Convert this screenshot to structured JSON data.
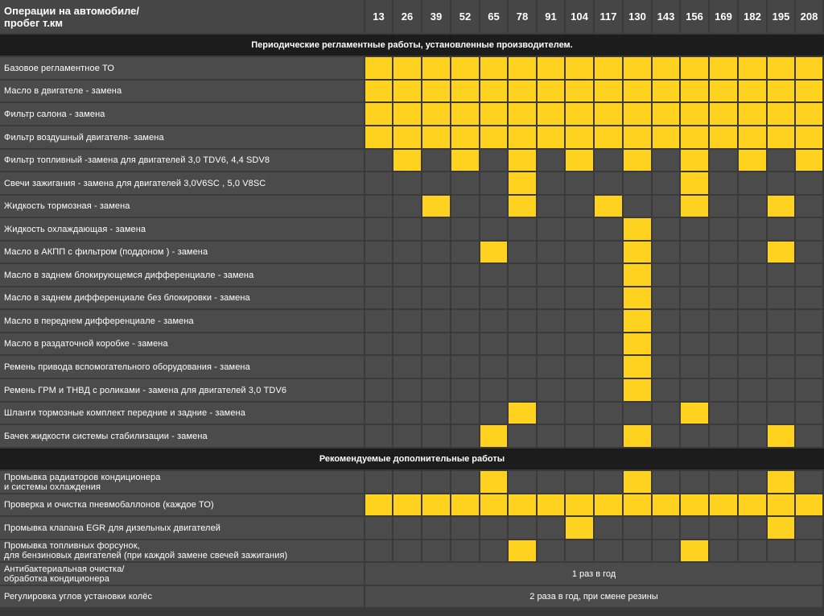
{
  "header": {
    "label": "Операции на автомобиле/\nпробег т.км",
    "km": [
      "13",
      "26",
      "39",
      "52",
      "65",
      "78",
      "91",
      "104",
      "117",
      "130",
      "143",
      "156",
      "169",
      "182",
      "195",
      "208"
    ]
  },
  "colors": {
    "active": "#ffd21f",
    "cell": "#4b4b4b",
    "section": "#1c1c1c"
  },
  "sections": [
    {
      "title": "Периодические регламентные работы, установленные производителем.",
      "rows": [
        {
          "label": "Базовое регламентное ТО",
          "marks": [
            "13",
            "26",
            "39",
            "52",
            "65",
            "78",
            "91",
            "104",
            "117",
            "130",
            "143",
            "156",
            "169",
            "182",
            "195",
            "208"
          ]
        },
        {
          "label": "Масло в двигателе - замена",
          "marks": [
            "13",
            "26",
            "39",
            "52",
            "65",
            "78",
            "91",
            "104",
            "117",
            "130",
            "143",
            "156",
            "169",
            "182",
            "195",
            "208"
          ]
        },
        {
          "label": "Фильтр салона - замена",
          "marks": [
            "13",
            "26",
            "39",
            "52",
            "65",
            "78",
            "91",
            "104",
            "117",
            "130",
            "143",
            "156",
            "169",
            "182",
            "195",
            "208"
          ]
        },
        {
          "label": "Фильтр воздушный двигателя- замена",
          "marks": [
            "13",
            "26",
            "39",
            "52",
            "65",
            "78",
            "91",
            "104",
            "117",
            "130",
            "143",
            "156",
            "169",
            "182",
            "195",
            "208"
          ]
        },
        {
          "label": "Фильтр топливный -замена для двигателей 3,0 TDV6, 4,4 SDV8",
          "marks": [
            "26",
            "52",
            "78",
            "104",
            "130",
            "156",
            "182",
            "208"
          ]
        },
        {
          "label": "Свечи зажигания - замена для двигателей 3,0V6SC , 5,0 V8SC",
          "marks": [
            "78",
            "156"
          ]
        },
        {
          "label": "Жидкость тормозная - замена",
          "marks": [
            "39",
            "78",
            "117",
            "156",
            "195"
          ]
        },
        {
          "label": "Жидкость охлаждающая - замена",
          "marks": [
            "130"
          ]
        },
        {
          "label": "Масло в АКПП с фильтром (поддоном ) - замена",
          "marks": [
            "65",
            "130",
            "195"
          ]
        },
        {
          "label": "Масло в заднем блокирующемся дифференциале - замена",
          "marks": [
            "130"
          ]
        },
        {
          "label": "Масло в заднем дифференциале без блокировки - замена",
          "marks": [
            "130"
          ]
        },
        {
          "label": "Масло в переднем дифференциале - замена",
          "marks": [
            "130"
          ]
        },
        {
          "label": "Масло в раздаточной коробке - замена",
          "marks": [
            "130"
          ]
        },
        {
          "label": "Ремень привода вспомогательного оборудования - замена",
          "marks": [
            "130"
          ]
        },
        {
          "label": "Ремень ГРМ и ТНВД с роликами - замена для двигателей 3,0 TDV6",
          "marks": [
            "130"
          ]
        },
        {
          "label": "Шланги тормозные комплект передние и задние - замена",
          "marks": [
            "78",
            "156"
          ]
        },
        {
          "label": "Бачек жидкости системы стабилизации - замена",
          "marks": [
            "65",
            "130",
            "195"
          ]
        }
      ]
    },
    {
      "title": "Рекомендуемые дополнительные работы",
      "rows": [
        {
          "label": "Промывка радиаторов кондиционера\nи системы охлаждения",
          "marks": [
            "65",
            "130",
            "195"
          ]
        },
        {
          "label": "Проверка и очистка пневмобаллонов (каждое ТО)",
          "marks": [
            "13",
            "26",
            "39",
            "52",
            "65",
            "78",
            "91",
            "104",
            "117",
            "130",
            "143",
            "156",
            "169",
            "182",
            "195",
            "208"
          ]
        },
        {
          "label": "Промывка клапана EGR для дизельных двигателей",
          "marks": [
            "104",
            "195"
          ]
        },
        {
          "label": "Промывка топливных форсунок,\nдля бензиновых двигателей (при каждой замене свечей зажигания)",
          "marks": [
            "78",
            "156"
          ]
        },
        {
          "label": "Антибактериальная очистка/\nобработка кондиционера",
          "span": "1 раз в год"
        },
        {
          "label": "Регулировка углов установки колёс",
          "span": "2 раза в год, при смене резины"
        }
      ]
    }
  ]
}
